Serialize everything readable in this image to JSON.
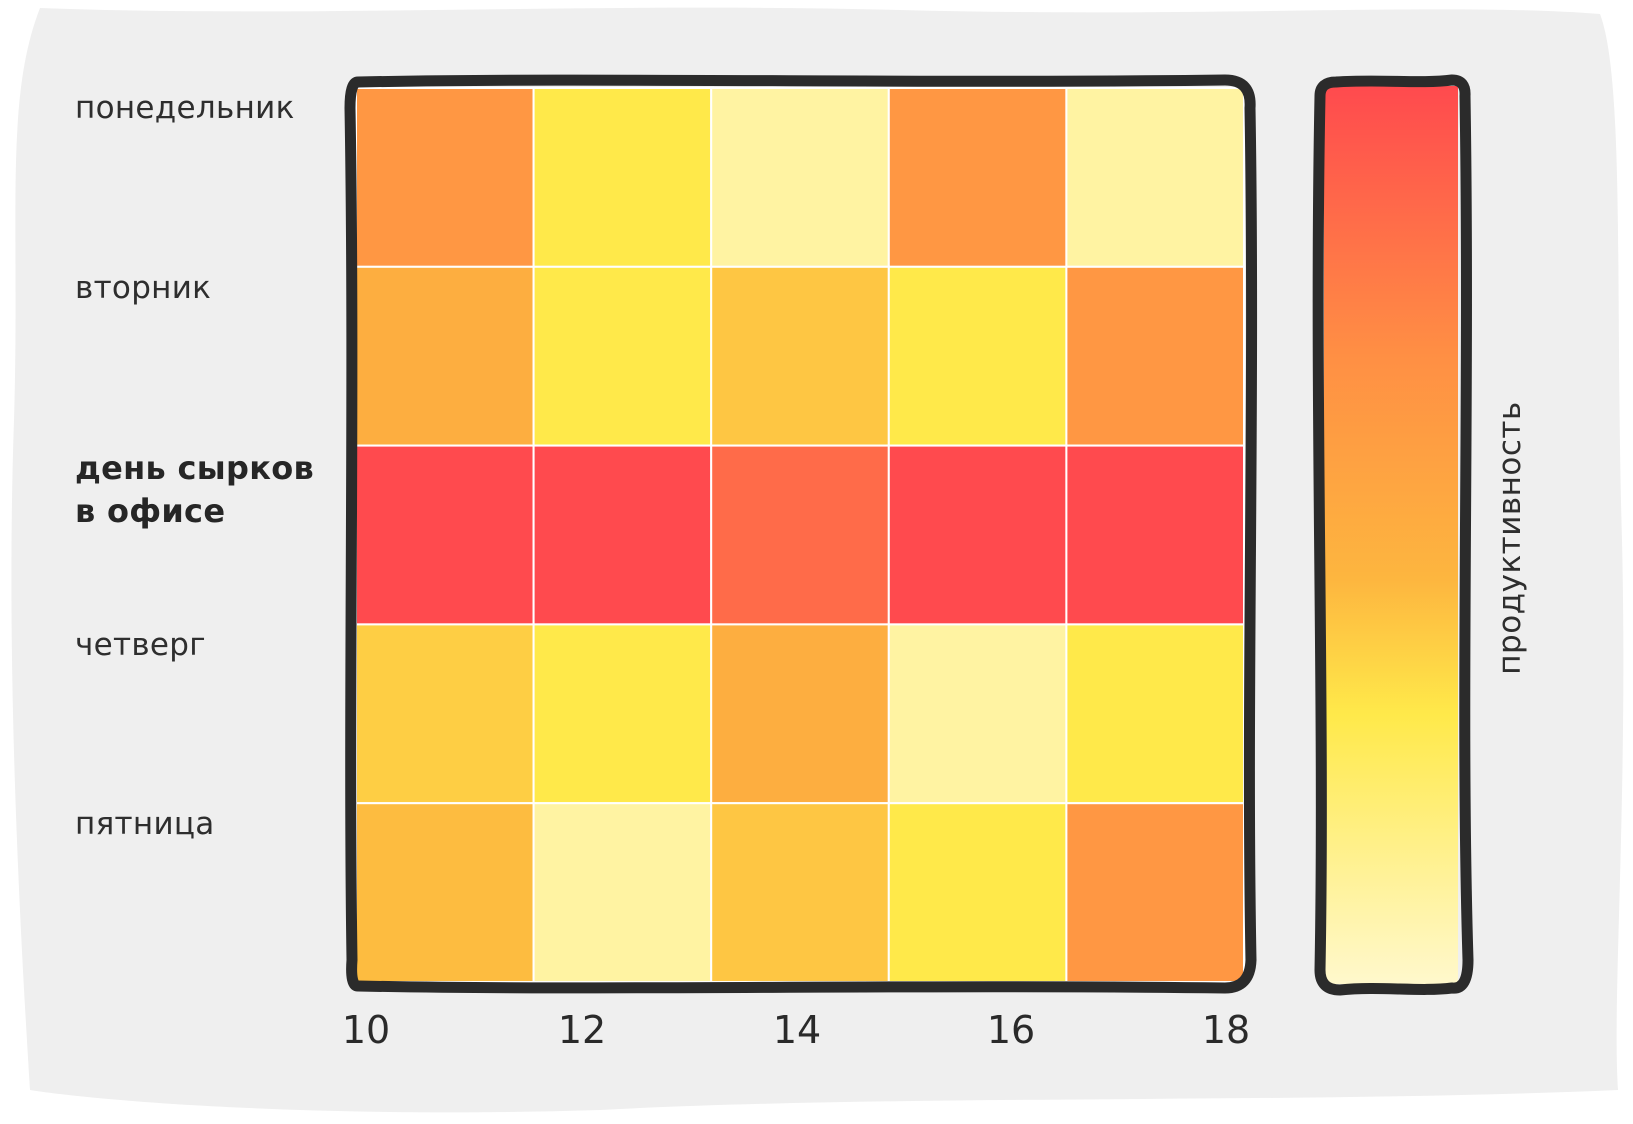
{
  "chart_data": {
    "type": "heatmap",
    "rows": [
      {
        "label": "понедельник",
        "emphasis": false
      },
      {
        "label": "вторник",
        "emphasis": false
      },
      {
        "label": "день сырков в офисе",
        "lines": [
          "день сырков",
          "в офисе"
        ],
        "emphasis": true
      },
      {
        "label": "четверг",
        "emphasis": false
      },
      {
        "label": "пятница",
        "emphasis": false
      }
    ],
    "x_ticks": [
      "10",
      "12",
      "14",
      "16",
      "18"
    ],
    "values": [
      [
        0.7,
        0.25,
        0.08,
        0.7,
        0.08
      ],
      [
        0.55,
        0.25,
        0.42,
        0.25,
        0.7
      ],
      [
        1.0,
        1.0,
        0.88,
        1.0,
        1.0
      ],
      [
        0.38,
        0.25,
        0.55,
        0.08,
        0.25
      ],
      [
        0.47,
        0.08,
        0.42,
        0.25,
        0.7
      ]
    ],
    "colorbar_label": "продуктивность",
    "colormap": [
      "#fff8cc",
      "#ffe94a",
      "#fdb63f",
      "#ff8f44",
      "#ff4a4e"
    ],
    "colors": {
      "background": "#efefef",
      "frame": "#2b2b2b",
      "cell_gap": "#ffffff"
    }
  }
}
